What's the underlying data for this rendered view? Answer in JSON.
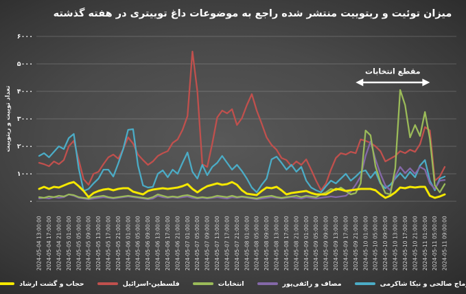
{
  "title": "میزان توئیت و ریتوییت منتشر شده راجع به موضوعات داغ توییتری در هفته گذشته",
  "chart_data": {
    "type": "line",
    "title": "میزان توئیت و ریتوییت منتشر شده راجع به موضوعات داغ توییتری در هفته گذشته",
    "xlabel": "",
    "ylabel": "تعداد توییت و ریتوییت",
    "ylim": [
      0,
      6000
    ],
    "grid": "horizontal",
    "legend_position": "bottom",
    "y_ticks": {
      "values": [
        0,
        1000,
        2000,
        3000,
        4000,
        5000,
        6000
      ],
      "labels": [
        "۰",
        "۱۰۰۰",
        "۲۰۰۰",
        "۳۰۰۰",
        "۴۰۰۰",
        "۵۰۰۰",
        "۶۰۰۰"
      ]
    },
    "x_tick_every": 2,
    "x": [
      "2024-05-04 13:00:00",
      "2024-05-04 15:00:00",
      "2024-05-04 17:00:00",
      "2024-05-04 19:00:00",
      "2024-05-04 21:00:00",
      "2024-05-04 23:00:00",
      "2024-05-05 01:00:00",
      "2024-05-05 03:00:00",
      "2024-05-05 05:00:00",
      "2024-05-05 07:00:00",
      "2024-05-05 09:00:00",
      "2024-05-05 11:00:00",
      "2024-05-05 13:00:00",
      "2024-05-05 15:00:00",
      "2024-05-05 17:00:00",
      "2024-05-05 19:00:00",
      "2024-05-05 21:00:00",
      "2024-05-05 23:00:00",
      "2024-05-06 01:00:00",
      "2024-05-06 03:00:00",
      "2024-05-06 05:00:00",
      "2024-05-06 07:00:00",
      "2024-05-06 09:00:00",
      "2024-05-06 11:00:00",
      "2024-05-06 13:00:00",
      "2024-05-06 15:00:00",
      "2024-05-06 17:00:00",
      "2024-05-06 19:00:00",
      "2024-05-06 21:00:00",
      "2024-05-06 23:00:00",
      "2024-05-07 01:00:00",
      "2024-05-07 03:00:00",
      "2024-05-07 05:00:00",
      "2024-05-07 07:00:00",
      "2024-05-07 09:00:00",
      "2024-05-07 11:00:00",
      "2024-05-07 13:00:00",
      "2024-05-07 15:00:00",
      "2024-05-07 17:00:00",
      "2024-05-07 19:00:00",
      "2024-05-07 21:00:00",
      "2024-05-07 23:00:00",
      "2024-05-08 01:00:00",
      "2024-05-08 03:00:00",
      "2024-05-08 05:00:00",
      "2024-05-08 07:00:00",
      "2024-05-08 09:00:00",
      "2024-05-08 11:00:00",
      "2024-05-08 13:00:00",
      "2024-05-08 15:00:00",
      "2024-05-08 17:00:00",
      "2024-05-08 19:00:00",
      "2024-05-08 21:00:00",
      "2024-05-08 23:00:00",
      "2024-05-09 01:00:00",
      "2024-05-09 03:00:00",
      "2024-05-09 05:00:00",
      "2024-05-09 07:00:00",
      "2024-05-09 09:00:00",
      "2024-05-09 11:00:00",
      "2024-05-09 13:00:00",
      "2024-05-09 15:00:00",
      "2024-05-09 17:00:00",
      "2024-05-09 19:00:00",
      "2024-05-09 21:00:00",
      "2024-05-09 23:00:00",
      "2024-05-10 01:00:00",
      "2024-05-10 03:00:00",
      "2024-05-10 05:00:00",
      "2024-05-10 07:00:00",
      "2024-05-10 09:00:00",
      "2024-05-10 11:00:00",
      "2024-05-10 13:00:00",
      "2024-05-10 15:00:00",
      "2024-05-10 17:00:00",
      "2024-05-10 19:00:00",
      "2024-05-10 21:00:00",
      "2024-05-10 23:00:00",
      "2024-05-11 01:00:00",
      "2024-05-11 03:00:00",
      "2024-05-11 05:00:00",
      "2024-05-11 07:00:00",
      "2024-05-11 09:00:00"
    ],
    "annotation": {
      "text": "مقطع انتخابات",
      "x_start": "2024-05-09 21:00:00",
      "x_end": "2024-05-11 03:00:00",
      "y_value": 4325
    },
    "draw_order": [
      "palestine-israel",
      "toomaj-nika",
      "masaf-raefipour",
      "entekhabat",
      "hijab-gasht-ershad"
    ],
    "series": [
      {
        "key": "hijab-gasht-ershad",
        "name": "حجاب و گشت ارشاد",
        "color": "#F5E800",
        "width": 3,
        "values": [
          450,
          525,
          450,
          525,
          500,
          575,
          650,
          700,
          550,
          375,
          150,
          300,
          375,
          425,
          450,
          400,
          450,
          475,
          475,
          350,
          300,
          250,
          375,
          425,
          450,
          475,
          450,
          475,
          500,
          550,
          625,
          450,
          325,
          450,
          550,
          600,
          650,
          600,
          625,
          700,
          600,
          400,
          275,
          250,
          225,
          375,
          500,
          475,
          525,
          400,
          250,
          300,
          325,
          350,
          375,
          300,
          250,
          250,
          250,
          350,
          450,
          425,
          375,
          400,
          425,
          450,
          450,
          450,
          400,
          250,
          125,
          200,
          325,
          500,
          475,
          525,
          500,
          525,
          525,
          200,
          125,
          175,
          250
        ]
      },
      {
        "key": "palestine-israel",
        "name": "فلسطین-اسرائیل",
        "color": "#C0504D",
        "width": 2.3,
        "values": [
          1400,
          1350,
          1275,
          1450,
          1350,
          1500,
          2000,
          2200,
          1500,
          800,
          600,
          1000,
          1075,
          1350,
          1600,
          1700,
          1550,
          1900,
          2325,
          2100,
          1700,
          1500,
          1325,
          1450,
          1650,
          1750,
          1825,
          2125,
          2250,
          2600,
          3100,
          5450,
          4000,
          1350,
          1250,
          2100,
          3050,
          3300,
          3200,
          3350,
          2775,
          3025,
          3500,
          3900,
          3300,
          2825,
          2325,
          2050,
          1875,
          1575,
          1500,
          1275,
          1450,
          1325,
          1525,
          1150,
          750,
          400,
          650,
          1150,
          1575,
          1750,
          1700,
          1800,
          1750,
          2250,
          2200,
          2125,
          2000,
          1825,
          1450,
          1550,
          1650,
          1825,
          1750,
          1875,
          1800,
          2075,
          2700,
          2575,
          750,
          900,
          1250
        ]
      },
      {
        "key": "entekhabat",
        "name": "انتخابات",
        "color": "#9BBB59",
        "width": 2.3,
        "values": [
          150,
          125,
          175,
          150,
          200,
          175,
          250,
          225,
          150,
          125,
          100,
          150,
          175,
          200,
          150,
          125,
          150,
          175,
          200,
          175,
          150,
          125,
          100,
          150,
          250,
          200,
          150,
          175,
          150,
          200,
          225,
          175,
          125,
          150,
          125,
          150,
          200,
          175,
          150,
          200,
          150,
          175,
          150,
          125,
          100,
          150,
          175,
          200,
          150,
          125,
          150,
          175,
          200,
          150,
          200,
          175,
          150,
          250,
          325,
          450,
          400,
          500,
          375,
          250,
          300,
          650,
          2575,
          2400,
          1275,
          700,
          300,
          250,
          1200,
          4050,
          3500,
          2325,
          2775,
          2375,
          3250,
          2275,
          575,
          325,
          625
        ]
      },
      {
        "key": "masaf-raefipour",
        "name": "مصاف و رائفی‌پور",
        "color": "#8468A8",
        "width": 2.3,
        "values": [
          100,
          125,
          100,
          150,
          125,
          150,
          250,
          200,
          125,
          100,
          75,
          100,
          125,
          150,
          125,
          100,
          125,
          150,
          175,
          150,
          125,
          100,
          75,
          100,
          200,
          150,
          125,
          150,
          125,
          150,
          175,
          125,
          100,
          125,
          100,
          125,
          150,
          125,
          100,
          150,
          125,
          150,
          125,
          100,
          75,
          100,
          125,
          150,
          125,
          100,
          125,
          150,
          125,
          100,
          150,
          125,
          100,
          125,
          150,
          175,
          150,
          175,
          200,
          350,
          600,
          900,
          1650,
          2175,
          1525,
          1000,
          575,
          400,
          900,
          1250,
          1025,
          1200,
          1000,
          1250,
          1150,
          650,
          450,
          750,
          775
        ]
      },
      {
        "key": "toomaj-nika",
        "name": "توماج صالحی و نیکا شاکرمی",
        "color": "#4BACC6",
        "width": 2.3,
        "values": [
          1650,
          1750,
          1600,
          1800,
          2000,
          1900,
          2300,
          2450,
          1200,
          375,
          450,
          650,
          825,
          1150,
          1150,
          900,
          1375,
          1900,
          2600,
          2625,
          1300,
          575,
          500,
          525,
          1000,
          1125,
          875,
          1150,
          1000,
          1400,
          1775,
          1075,
          825,
          1325,
          950,
          1250,
          1400,
          1650,
          1400,
          1150,
          1325,
          1100,
          825,
          500,
          325,
          600,
          825,
          1525,
          1625,
          1400,
          1150,
          1325,
          1075,
          1250,
          750,
          500,
          400,
          325,
          550,
          750,
          650,
          825,
          1000,
          750,
          900,
          1075,
          1125,
          850,
          1075,
          650,
          475,
          600,
          825,
          1025,
          825,
          1075,
          875,
          1300,
          1500,
          750,
          400,
          825,
          900
        ]
      }
    ]
  }
}
